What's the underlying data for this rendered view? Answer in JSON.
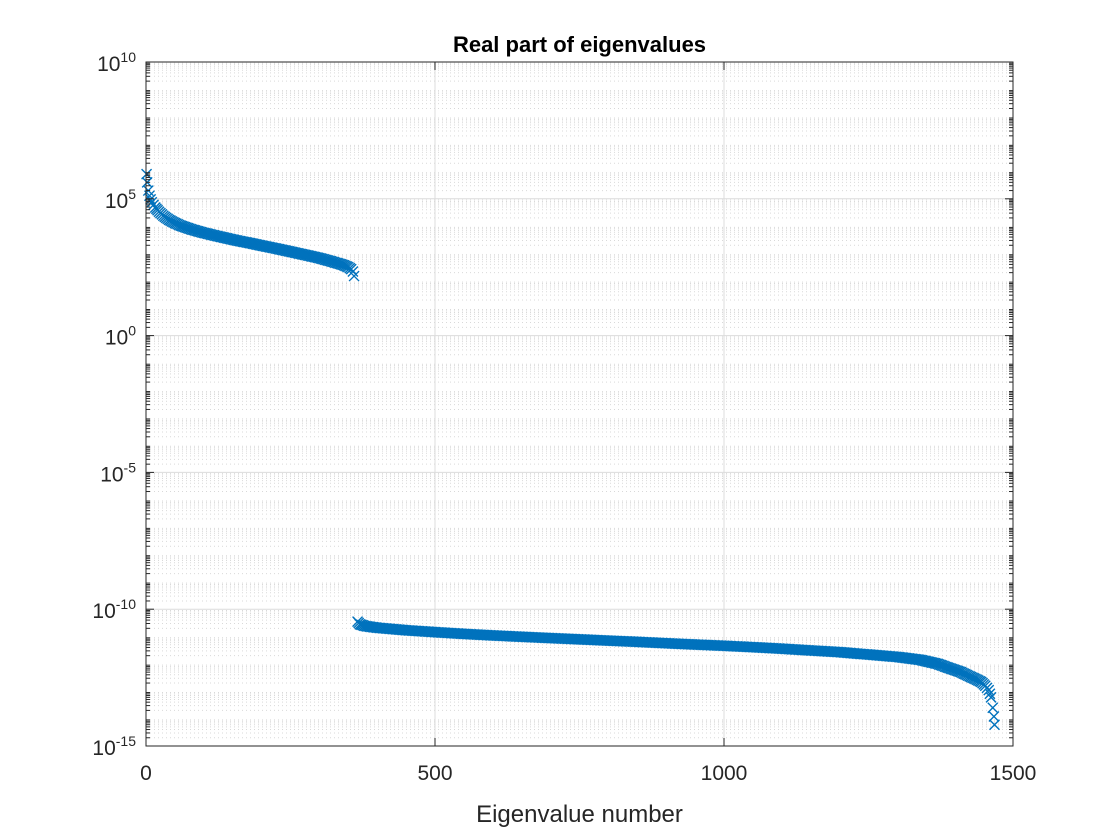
{
  "chart_data": {
    "type": "scatter",
    "title": "Real part of eigenvalues",
    "xlabel": "Eigenvalue number",
    "ylabel": "",
    "xlim": [
      0,
      1500
    ],
    "ylim": [
      1e-15,
      10000000000.0
    ],
    "yscale": "log",
    "grid": true,
    "minor_grid_y": true,
    "marker": "x",
    "marker_color": "#0072BD",
    "x_ticks": [
      {
        "value": 0,
        "label": "0"
      },
      {
        "value": 500,
        "label": "500"
      },
      {
        "value": 1000,
        "label": "1000"
      },
      {
        "value": 1500,
        "label": "1500"
      }
    ],
    "y_ticks": [
      {
        "value": 10000000000.0,
        "base": "10",
        "exp": "10"
      },
      {
        "value": 100000.0,
        "base": "10",
        "exp": "5"
      },
      {
        "value": 1,
        "base": "10",
        "exp": "0"
      },
      {
        "value": 1e-05,
        "base": "10",
        "exp": "-5"
      },
      {
        "value": 1e-10,
        "base": "10",
        "exp": "-10"
      },
      {
        "value": 1e-15,
        "base": "10",
        "exp": "-15"
      }
    ],
    "series": [
      {
        "points": [
          [
            1,
            800000
          ],
          [
            2,
            400000
          ],
          [
            4,
            200000
          ],
          [
            6,
            130000
          ],
          [
            8,
            95000
          ],
          [
            10,
            75000
          ],
          [
            13,
            60000
          ],
          [
            16,
            48000
          ],
          [
            20,
            38000
          ],
          [
            25,
            30000
          ],
          [
            30,
            24000
          ],
          [
            35,
            20000
          ],
          [
            40,
            17000
          ],
          [
            50,
            13000
          ],
          [
            60,
            10500
          ],
          [
            70,
            8800
          ],
          [
            80,
            7500
          ],
          [
            90,
            6500
          ],
          [
            100,
            5700
          ],
          [
            120,
            4500
          ],
          [
            140,
            3600
          ],
          [
            160,
            2900
          ],
          [
            180,
            2400
          ],
          [
            200,
            1950
          ],
          [
            220,
            1600
          ],
          [
            240,
            1300
          ],
          [
            260,
            1050
          ],
          [
            280,
            850
          ],
          [
            300,
            680
          ],
          [
            320,
            520
          ],
          [
            340,
            390
          ],
          [
            350,
            320
          ],
          [
            355,
            270
          ],
          [
            358,
            220
          ],
          [
            360,
            150
          ]
        ]
      },
      {
        "points": [
          [
            366,
            3.5e-11
          ],
          [
            370,
            2.8e-11
          ],
          [
            380,
            2.4e-11
          ],
          [
            400,
            2.1e-11
          ],
          [
            450,
            1.7e-11
          ],
          [
            500,
            1.45e-11
          ],
          [
            550,
            1.25e-11
          ],
          [
            600,
            1.1e-11
          ],
          [
            650,
            9.8e-12
          ],
          [
            700,
            8.8e-12
          ],
          [
            750,
            7.9e-12
          ],
          [
            800,
            7.1e-12
          ],
          [
            850,
            6.4e-12
          ],
          [
            900,
            5.7e-12
          ],
          [
            950,
            5.1e-12
          ],
          [
            1000,
            4.6e-12
          ],
          [
            1050,
            4.1e-12
          ],
          [
            1100,
            3.6e-12
          ],
          [
            1150,
            3.1e-12
          ],
          [
            1200,
            2.7e-12
          ],
          [
            1250,
            2.2e-12
          ],
          [
            1300,
            1.8e-12
          ],
          [
            1340,
            1.4e-12
          ],
          [
            1370,
            1e-12
          ],
          [
            1390,
            7e-13
          ],
          [
            1410,
            5e-13
          ],
          [
            1425,
            3.5e-13
          ],
          [
            1435,
            2.8e-13
          ],
          [
            1445,
            2.2e-13
          ],
          [
            1452,
            1.6e-13
          ],
          [
            1458,
            1.1e-13
          ],
          [
            1462,
            6e-14
          ],
          [
            1465,
            2.5e-14
          ],
          [
            1467,
            1.2e-14
          ],
          [
            1468,
            6e-15
          ]
        ]
      }
    ]
  }
}
